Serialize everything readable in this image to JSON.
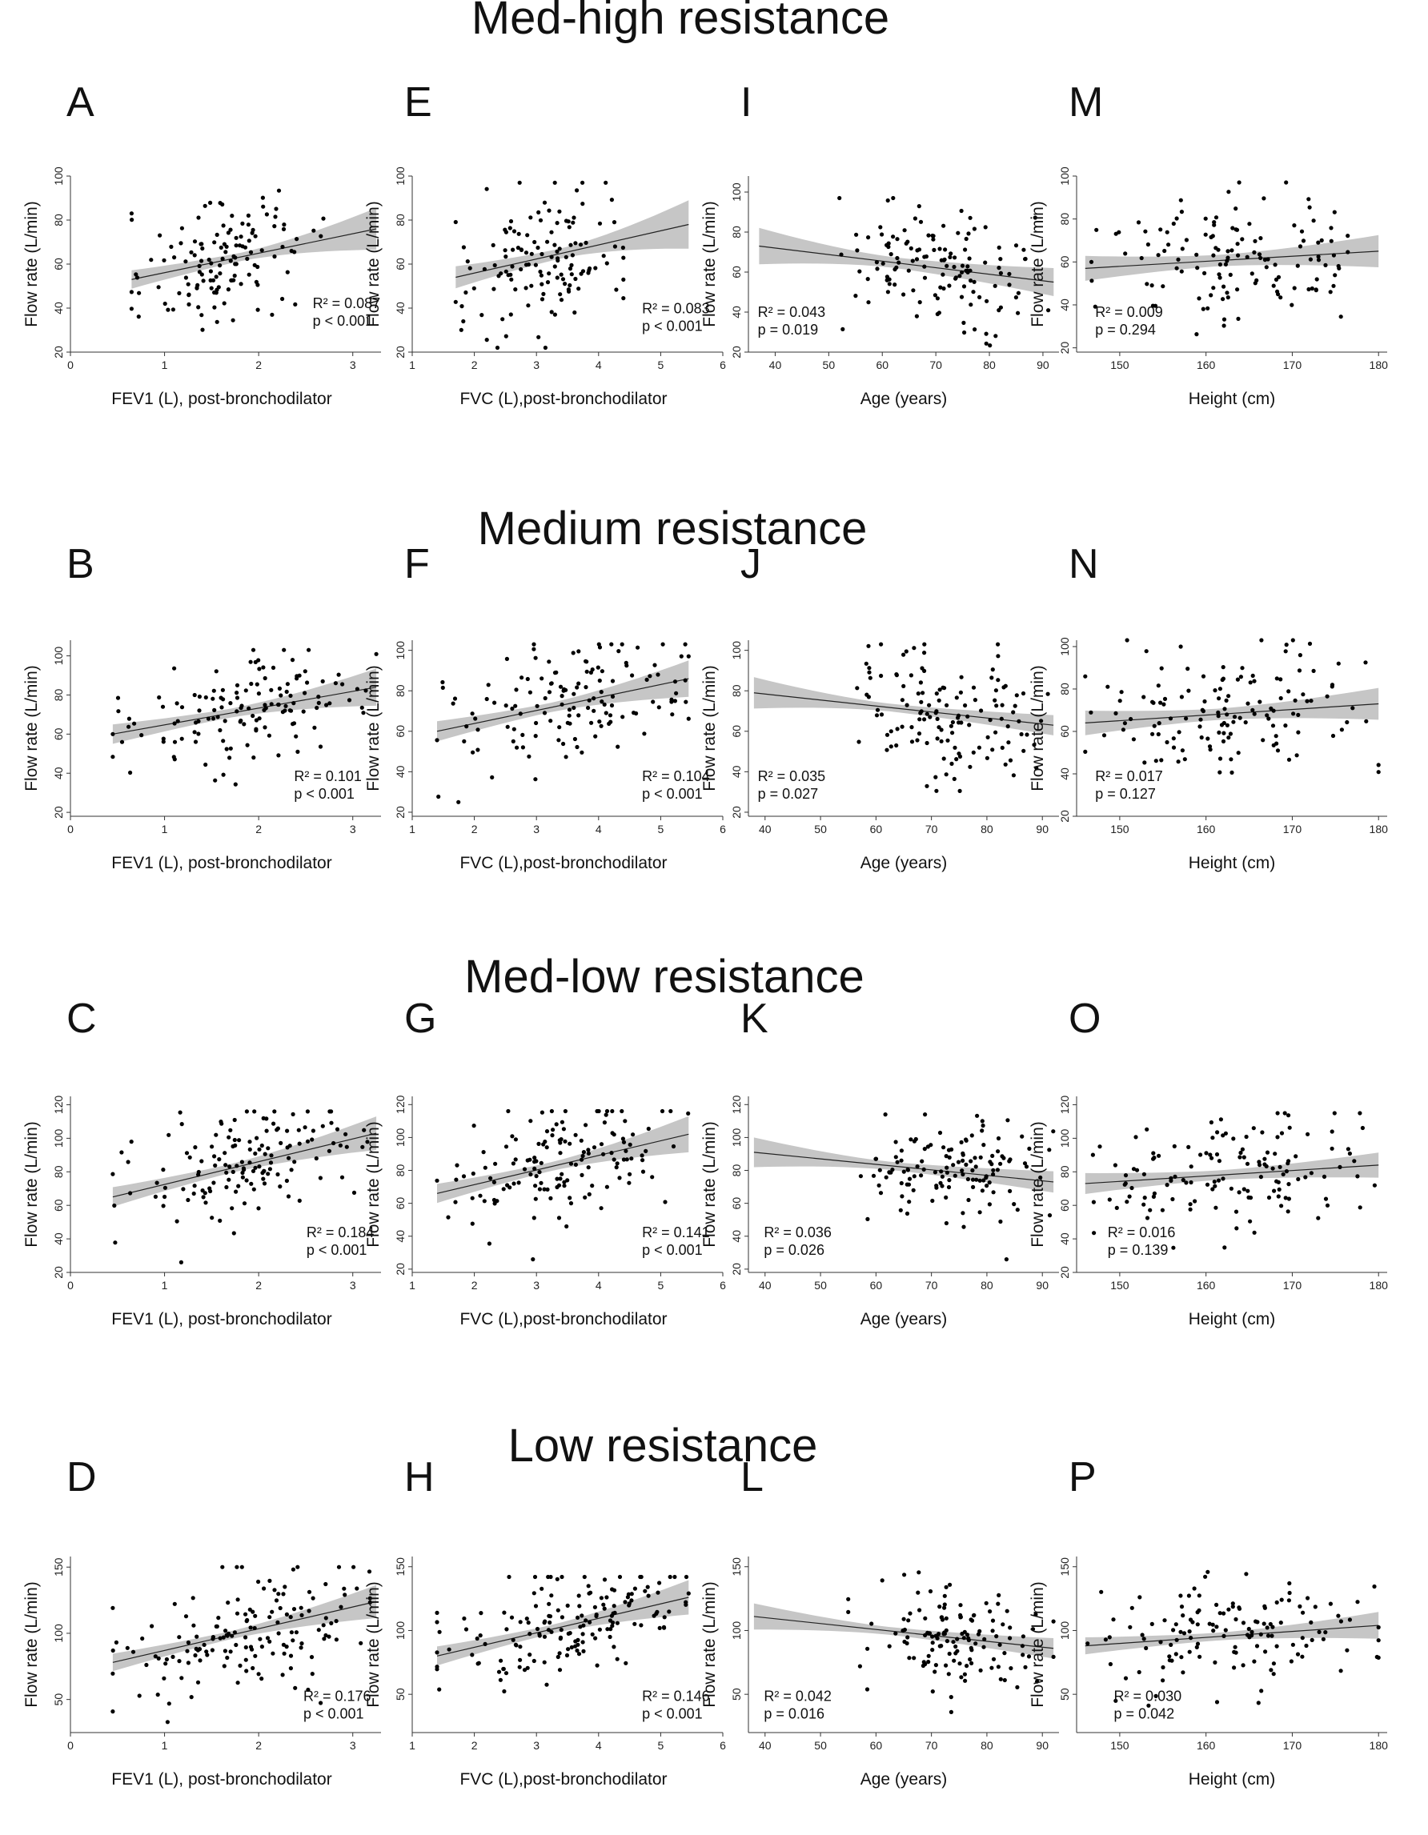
{
  "figure": {
    "rows": [
      {
        "title": "Med-high resistance"
      },
      {
        "title": "Medium resistance"
      },
      {
        "title": "Med-low resistance"
      },
      {
        "title": "Low resistance"
      }
    ],
    "ylabel": "Flow rate (L/min)",
    "colors": {
      "band": "#c6c6c6",
      "dots": "#000000",
      "line": "#222222"
    }
  },
  "chart_data": [
    {
      "type": "scatter",
      "row": 0,
      "col": 0,
      "letter": "A",
      "title": "Med-high resistance",
      "xlabel": "FEV1 (L), post-bronchodilator",
      "ylabel": "Flow rate (L/min)",
      "xlim": [
        0,
        3.3
      ],
      "ylim": [
        20,
        100
      ],
      "xticks": [
        "0",
        "1",
        "2",
        "3"
      ],
      "xtickvals": [
        0,
        1,
        2,
        3
      ],
      "yticks": [
        "20",
        "40",
        "60",
        "80",
        "100"
      ],
      "ytickvals": [
        20,
        40,
        60,
        80,
        100
      ],
      "fit": {
        "x0": 0.65,
        "y0": 53,
        "x1": 3.25,
        "y1": 76
      },
      "ci": {
        "lo0": 48,
        "hi0": 58,
        "lo1": 67,
        "hi1": 86
      },
      "r2": "R² = 0.087",
      "p": "p < 0.001",
      "stat_pos": [
        0.78,
        0.25
      ],
      "xspread": [
        0.65,
        2.7
      ],
      "yspread": [
        26,
        97
      ],
      "n": 130,
      "seed": 11
    },
    {
      "type": "scatter",
      "row": 0,
      "col": 1,
      "letter": "E",
      "title": "Med-high resistance",
      "xlabel": "FVC (L),post-bronchodilator",
      "ylabel": "Flow rate (L/min)",
      "xlim": [
        1,
        6
      ],
      "ylim": [
        20,
        100
      ],
      "xticks": [
        "1",
        "2",
        "3",
        "4",
        "5",
        "6"
      ],
      "xtickvals": [
        1,
        2,
        3,
        4,
        5,
        6
      ],
      "yticks": [
        "20",
        "40",
        "60",
        "80",
        "100"
      ],
      "ytickvals": [
        20,
        40,
        60,
        80,
        100
      ],
      "fit": {
        "x0": 1.7,
        "y0": 54,
        "x1": 5.45,
        "y1": 78
      },
      "ci": {
        "lo0": 48,
        "hi0": 60,
        "lo1": 67,
        "hi1": 89
      },
      "r2": "R² = 0.083",
      "p": "p < 0.001",
      "stat_pos": [
        0.74,
        0.22
      ],
      "xspread": [
        1.7,
        4.4
      ],
      "yspread": [
        22,
        97
      ],
      "n": 130,
      "seed": 23
    },
    {
      "type": "scatter",
      "row": 0,
      "col": 2,
      "letter": "I",
      "title": "Med-high resistance",
      "xlabel": "Age (years)",
      "ylabel": "Flow rate (L/min)",
      "xlim": [
        35,
        93
      ],
      "ylim": [
        20,
        108
      ],
      "xticks": [
        "40",
        "50",
        "60",
        "70",
        "80",
        "90"
      ],
      "xtickvals": [
        40,
        50,
        60,
        70,
        80,
        90
      ],
      "yticks": [
        "20",
        "40",
        "60",
        "80",
        "100"
      ],
      "ytickvals": [
        20,
        40,
        60,
        80,
        100
      ],
      "fit": {
        "x0": 37,
        "y0": 73,
        "x1": 92,
        "y1": 55
      },
      "ci": {
        "lo0": 62,
        "hi0": 85,
        "lo1": 48,
        "hi1": 62
      },
      "r2": "R² = 0.043",
      "p": "p = 0.019",
      "stat_pos": [
        0.03,
        0.2
      ],
      "xspread": [
        52,
        91
      ],
      "yspread": [
        21,
        97
      ],
      "n": 130,
      "seed": 37
    },
    {
      "type": "scatter",
      "row": 0,
      "col": 3,
      "letter": "M",
      "title": "Med-high resistance",
      "xlabel": "Height (cm)",
      "ylabel": "Flow rate (L/min)",
      "xlim": [
        145,
        181
      ],
      "ylim": [
        18,
        100
      ],
      "xticks": [
        "150",
        "160",
        "170",
        "180"
      ],
      "xtickvals": [
        150,
        160,
        170,
        180
      ],
      "yticks": [
        "20",
        "40",
        "60",
        "80",
        "100"
      ],
      "ytickvals": [
        20,
        40,
        60,
        80,
        100
      ],
      "fit": {
        "x0": 146,
        "y0": 57,
        "x1": 180,
        "y1": 65
      },
      "ci": {
        "lo0": 50,
        "hi0": 64,
        "lo1": 58,
        "hi1": 73
      },
      "r2": "R² = 0.009",
      "p": "p = 0.294",
      "stat_pos": [
        0.06,
        0.2
      ],
      "xspread": [
        146,
        180
      ],
      "yspread": [
        20,
        97
      ],
      "n": 130,
      "seed": 41
    },
    {
      "type": "scatter",
      "row": 1,
      "col": 0,
      "letter": "B",
      "title": "Medium resistance",
      "xlabel": "FEV1 (L), post-bronchodilator",
      "ylabel": "Flow rate (L/min)",
      "xlim": [
        0,
        3.3
      ],
      "ylim": [
        18,
        108
      ],
      "xticks": [
        "0",
        "1",
        "2",
        "3"
      ],
      "xtickvals": [
        0,
        1,
        2,
        3
      ],
      "yticks": [
        "20",
        "40",
        "60",
        "80",
        "100"
      ],
      "ytickvals": [
        20,
        40,
        60,
        80,
        100
      ],
      "fit": {
        "x0": 0.45,
        "y0": 60,
        "x1": 3.25,
        "y1": 84
      },
      "ci": {
        "lo0": 54,
        "hi0": 66,
        "lo1": 74,
        "hi1": 93
      },
      "r2": "R² = 0.101",
      "p": "p < 0.001",
      "stat_pos": [
        0.72,
        0.2
      ],
      "xspread": [
        0.45,
        3.25
      ],
      "yspread": [
        25,
        103
      ],
      "n": 135,
      "seed": 53
    },
    {
      "type": "scatter",
      "row": 1,
      "col": 1,
      "letter": "F",
      "title": "Medium resistance",
      "xlabel": "FVC (L),post-bronchodilator",
      "ylabel": "Flow rate (L/min)",
      "xlim": [
        1,
        6
      ],
      "ylim": [
        18,
        105
      ],
      "xticks": [
        "1",
        "2",
        "3",
        "4",
        "5",
        "6"
      ],
      "xtickvals": [
        1,
        2,
        3,
        4,
        5,
        6
      ],
      "yticks": [
        "20",
        "40",
        "60",
        "80",
        "100"
      ],
      "ytickvals": [
        20,
        40,
        60,
        80,
        100
      ],
      "fit": {
        "x0": 1.4,
        "y0": 60,
        "x1": 5.45,
        "y1": 86
      },
      "ci": {
        "lo0": 54,
        "hi0": 66,
        "lo1": 77,
        "hi1": 95
      },
      "r2": "R² = 0.104",
      "p": "p < 0.001",
      "stat_pos": [
        0.74,
        0.2
      ],
      "xspread": [
        1.4,
        5.45
      ],
      "yspread": [
        25,
        103
      ],
      "n": 135,
      "seed": 67
    },
    {
      "type": "scatter",
      "row": 1,
      "col": 2,
      "letter": "J",
      "title": "Medium resistance",
      "xlabel": "Age (years)",
      "ylabel": "Flow rate (L/min)",
      "xlim": [
        37,
        93
      ],
      "ylim": [
        18,
        105
      ],
      "xticks": [
        "40",
        "50",
        "60",
        "70",
        "80",
        "90"
      ],
      "xtickvals": [
        40,
        50,
        60,
        70,
        80,
        90
      ],
      "yticks": [
        "20",
        "40",
        "60",
        "80",
        "100"
      ],
      "ytickvals": [
        20,
        40,
        60,
        80,
        100
      ],
      "fit": {
        "x0": 38,
        "y0": 79,
        "x1": 92,
        "y1": 63
      },
      "ci": {
        "lo0": 69,
        "hi0": 89,
        "lo1": 58,
        "hi1": 68
      },
      "r2": "R² = 0.035",
      "p": "p = 0.027",
      "stat_pos": [
        0.03,
        0.2
      ],
      "xspread": [
        55,
        91
      ],
      "yspread": [
        24,
        103
      ],
      "n": 130,
      "seed": 79
    },
    {
      "type": "scatter",
      "row": 1,
      "col": 3,
      "letter": "N",
      "title": "Medium resistance",
      "xlabel": "Height (cm)",
      "ylabel": "Flow rate (L/min)",
      "xlim": [
        145,
        181
      ],
      "ylim": [
        20,
        103
      ],
      "xticks": [
        "150",
        "160",
        "170",
        "180"
      ],
      "xtickvals": [
        150,
        160,
        170,
        180
      ],
      "yticks": [
        "20",
        "40",
        "60",
        "80",
        "100"
      ],
      "ytickvals": [
        20,
        40,
        60,
        80,
        100
      ],
      "fit": {
        "x0": 146,
        "y0": 64,
        "x1": 180,
        "y1": 73
      },
      "ci": {
        "lo0": 57,
        "hi0": 71,
        "lo1": 66,
        "hi1": 81
      },
      "r2": "R² = 0.017",
      "p": "p = 0.127",
      "stat_pos": [
        0.06,
        0.2
      ],
      "xspread": [
        146,
        180
      ],
      "yspread": [
        24,
        103
      ],
      "n": 135,
      "seed": 83
    },
    {
      "type": "scatter",
      "row": 2,
      "col": 0,
      "letter": "C",
      "title": "Med-low resistance",
      "xlabel": "FEV1 (L), post-bronchodilator",
      "ylabel": "Flow rate (L/min)",
      "xlim": [
        0,
        3.3
      ],
      "ylim": [
        20,
        125
      ],
      "xticks": [
        "0",
        "1",
        "2",
        "3"
      ],
      "xtickvals": [
        0,
        1,
        2,
        3
      ],
      "yticks": [
        "20",
        "40",
        "60",
        "80",
        "100",
        "120"
      ],
      "ytickvals": [
        20,
        40,
        60,
        80,
        100,
        120
      ],
      "fit": {
        "x0": 0.45,
        "y0": 65,
        "x1": 3.25,
        "y1": 103
      },
      "ci": {
        "lo0": 58,
        "hi0": 72,
        "lo1": 93,
        "hi1": 113
      },
      "r2": "R² = 0.184",
      "p": "p < 0.001",
      "stat_pos": [
        0.76,
        0.2
      ],
      "xspread": [
        0.45,
        3.3
      ],
      "yspread": [
        26,
        116
      ],
      "n": 140,
      "seed": 97
    },
    {
      "type": "scatter",
      "row": 2,
      "col": 1,
      "letter": "G",
      "title": "Med-low resistance",
      "xlabel": "FVC (L),post-bronchodilator",
      "ylabel": "Flow rate (L/min)",
      "xlim": [
        1,
        6
      ],
      "ylim": [
        18,
        125
      ],
      "xticks": [
        "1",
        "2",
        "3",
        "4",
        "5",
        "6"
      ],
      "xtickvals": [
        1,
        2,
        3,
        4,
        5,
        6
      ],
      "yticks": [
        "20",
        "40",
        "60",
        "80",
        "100",
        "120"
      ],
      "ytickvals": [
        20,
        40,
        60,
        80,
        100,
        120
      ],
      "fit": {
        "x0": 1.4,
        "y0": 66,
        "x1": 5.45,
        "y1": 102
      },
      "ci": {
        "lo0": 59,
        "hi0": 73,
        "lo1": 91,
        "hi1": 113
      },
      "r2": "R² = 0.141",
      "p": "p < 0.001",
      "stat_pos": [
        0.74,
        0.2
      ],
      "xspread": [
        1.4,
        5.45
      ],
      "yspread": [
        26,
        116
      ],
      "n": 140,
      "seed": 101
    },
    {
      "type": "scatter",
      "row": 2,
      "col": 2,
      "letter": "K",
      "title": "Med-low resistance",
      "xlabel": "Age (years)",
      "ylabel": "Flow rate (L/min)",
      "xlim": [
        37,
        93
      ],
      "ylim": [
        18,
        125
      ],
      "xticks": [
        "40",
        "50",
        "60",
        "70",
        "80",
        "90"
      ],
      "xtickvals": [
        40,
        50,
        60,
        70,
        80,
        90
      ],
      "yticks": [
        "20",
        "40",
        "60",
        "80",
        "100",
        "120"
      ],
      "ytickvals": [
        20,
        40,
        60,
        80,
        100,
        120
      ],
      "fit": {
        "x0": 38,
        "y0": 91,
        "x1": 92,
        "y1": 73
      },
      "ci": {
        "lo0": 80,
        "hi0": 103,
        "lo1": 66,
        "hi1": 79
      },
      "r2": "R² = 0.036",
      "p": "p = 0.026",
      "stat_pos": [
        0.05,
        0.2
      ],
      "xspread": [
        55,
        92
      ],
      "yspread": [
        26,
        114
      ],
      "n": 130,
      "seed": 113
    },
    {
      "type": "scatter",
      "row": 2,
      "col": 3,
      "letter": "O",
      "title": "Med-low resistance",
      "xlabel": "Height (cm)",
      "ylabel": "Flow rate (L/min)",
      "xlim": [
        145,
        181
      ],
      "ylim": [
        20,
        125
      ],
      "xticks": [
        "150",
        "160",
        "170",
        "180"
      ],
      "xtickvals": [
        150,
        160,
        170,
        180
      ],
      "yticks": [
        "20",
        "40",
        "60",
        "80",
        "100",
        "120"
      ],
      "ytickvals": [
        20,
        40,
        60,
        80,
        100,
        120
      ],
      "fit": {
        "x0": 146,
        "y0": 73,
        "x1": 180,
        "y1": 84
      },
      "ci": {
        "lo0": 66,
        "hi0": 81,
        "lo1": 77,
        "hi1": 92
      },
      "r2": "R² = 0.016",
      "p": "p = 0.139",
      "stat_pos": [
        0.1,
        0.2
      ],
      "xspread": [
        146,
        180
      ],
      "yspread": [
        26,
        115
      ],
      "n": 135,
      "seed": 127
    },
    {
      "type": "scatter",
      "row": 3,
      "col": 0,
      "letter": "D",
      "title": "Low resistance",
      "xlabel": "FEV1 (L), post-bronchodilator",
      "ylabel": "Flow rate (L/min)",
      "xlim": [
        0,
        3.3
      ],
      "ylim": [
        25,
        158
      ],
      "xticks": [
        "0",
        "1",
        "2",
        "3"
      ],
      "xtickvals": [
        0,
        1,
        2,
        3
      ],
      "yticks": [
        "50",
        "100",
        "150"
      ],
      "ytickvals": [
        50,
        100,
        150
      ],
      "fit": {
        "x0": 0.45,
        "y0": 78,
        "x1": 3.25,
        "y1": 124
      },
      "ci": {
        "lo0": 70,
        "hi0": 86,
        "lo1": 112,
        "hi1": 137
      },
      "r2": "R² = 0.176",
      "p": "p < 0.001",
      "stat_pos": [
        0.75,
        0.18
      ],
      "xspread": [
        0.45,
        3.3
      ],
      "yspread": [
        33,
        150
      ],
      "n": 150,
      "seed": 131
    },
    {
      "type": "scatter",
      "row": 3,
      "col": 1,
      "letter": "H",
      "title": "Low resistance",
      "xlabel": "FVC (L),post-bronchodilator",
      "ylabel": "Flow rate (L/min)",
      "xlim": [
        1,
        6
      ],
      "ylim": [
        20,
        158
      ],
      "xticks": [
        "1",
        "2",
        "3",
        "4",
        "5",
        "6"
      ],
      "xtickvals": [
        1,
        2,
        3,
        4,
        5,
        6
      ],
      "yticks": [
        "50",
        "100",
        "150"
      ],
      "ytickvals": [
        50,
        100,
        150
      ],
      "fit": {
        "x0": 1.4,
        "y0": 80,
        "x1": 5.45,
        "y1": 126
      },
      "ci": {
        "lo0": 71,
        "hi0": 89,
        "lo1": 113,
        "hi1": 140
      },
      "r2": "R² = 0.146",
      "p": "p < 0.001",
      "stat_pos": [
        0.74,
        0.18
      ],
      "xspread": [
        1.4,
        5.45
      ],
      "yspread": [
        33,
        142
      ],
      "n": 160,
      "seed": 139
    },
    {
      "type": "scatter",
      "row": 3,
      "col": 2,
      "letter": "L",
      "title": "Low resistance",
      "xlabel": "Age (years)",
      "ylabel": "Flow rate (L/min)",
      "xlim": [
        37,
        93
      ],
      "ylim": [
        20,
        158
      ],
      "xticks": [
        "40",
        "50",
        "60",
        "70",
        "80",
        "90"
      ],
      "xtickvals": [
        40,
        50,
        60,
        70,
        80,
        90
      ],
      "yticks": [
        "50",
        "100",
        "150"
      ],
      "ytickvals": [
        50,
        100,
        150
      ],
      "fit": {
        "x0": 38,
        "y0": 111,
        "x1": 92,
        "y1": 86
      },
      "ci": {
        "lo0": 98,
        "hi0": 124,
        "lo1": 78,
        "hi1": 94
      },
      "r2": "R² = 0.042",
      "p": "p = 0.016",
      "stat_pos": [
        0.05,
        0.18
      ],
      "xspread": [
        55,
        92
      ],
      "yspread": [
        33,
        148
      ],
      "n": 130,
      "seed": 149
    },
    {
      "type": "scatter",
      "row": 3,
      "col": 3,
      "letter": "P",
      "title": "Low resistance",
      "xlabel": "Height (cm)",
      "ylabel": "Flow rate (L/min)",
      "xlim": [
        145,
        181
      ],
      "ylim": [
        20,
        158
      ],
      "xticks": [
        "150",
        "160",
        "170",
        "180"
      ],
      "xtickvals": [
        150,
        160,
        170,
        180
      ],
      "yticks": [
        "50",
        "100",
        "150"
      ],
      "ytickvals": [
        50,
        100,
        150
      ],
      "fit": {
        "x0": 146,
        "y0": 88,
        "x1": 180,
        "y1": 104
      },
      "ci": {
        "lo0": 80,
        "hi0": 96,
        "lo1": 94,
        "hi1": 115
      },
      "r2": "R² = 0.030",
      "p": "p = 0.042",
      "stat_pos": [
        0.12,
        0.18
      ],
      "xspread": [
        146,
        180
      ],
      "yspread": [
        33,
        150
      ],
      "n": 135,
      "seed": 157
    }
  ]
}
